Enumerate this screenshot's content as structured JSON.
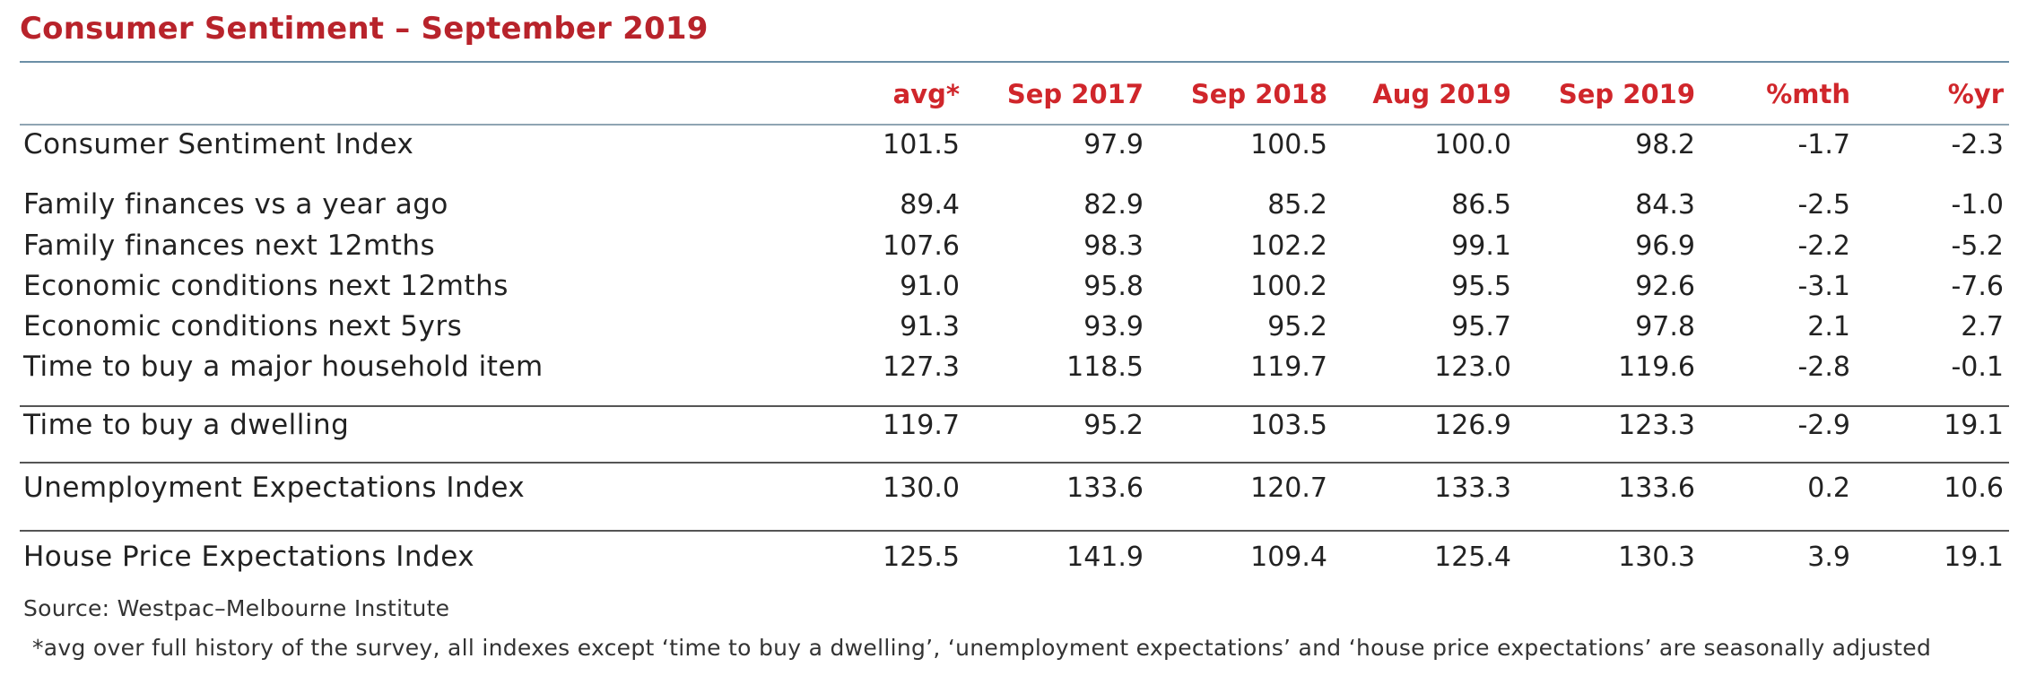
{
  "title": "Consumer Sentiment – September 2019",
  "columns": [
    "avg*",
    "Sep 2017",
    "Sep 2018",
    "Aug 2019",
    "Sep 2019",
    "%mth",
    "%yr"
  ],
  "rows": [
    {
      "label": "Consumer Sentiment Index",
      "values": [
        "101.5",
        "97.9",
        "100.5",
        "100.0",
        "98.2",
        "-1.7",
        "-2.3"
      ]
    },
    {
      "label": "Family finances vs a year ago",
      "values": [
        "89.4",
        "82.9",
        "85.2",
        "86.5",
        "84.3",
        "-2.5",
        "-1.0"
      ]
    },
    {
      "label": "Family finances next 12mths",
      "values": [
        "107.6",
        "98.3",
        "102.2",
        "99.1",
        "96.9",
        "-2.2",
        "-5.2"
      ]
    },
    {
      "label": "Economic conditions next 12mths",
      "values": [
        "91.0",
        "95.8",
        "100.2",
        "95.5",
        "92.6",
        "-3.1",
        "-7.6"
      ]
    },
    {
      "label": "Economic conditions next 5yrs",
      "values": [
        "91.3",
        "93.9",
        "95.2",
        "95.7",
        "97.8",
        "2.1",
        "2.7"
      ]
    },
    {
      "label": "Time to buy a major household item",
      "values": [
        "127.3",
        "118.5",
        "119.7",
        "123.0",
        "119.6",
        "-2.8",
        "-0.1"
      ]
    },
    {
      "label": "Time to buy a dwelling",
      "values": [
        "119.7",
        "95.2",
        "103.5",
        "126.9",
        "123.3",
        "-2.9",
        "19.1"
      ]
    },
    {
      "label": "Unemployment Expectations Index",
      "values": [
        "130.0",
        "133.6",
        "120.7",
        "133.3",
        "133.6",
        "0.2",
        "10.6"
      ]
    },
    {
      "label": "House Price Expectations Index",
      "values": [
        "125.5",
        "141.9",
        "109.4",
        "125.4",
        "130.3",
        "3.9",
        "19.1"
      ]
    }
  ],
  "footer": {
    "source": "Source: Westpac–Melbourne Institute",
    "note": "*avg over full history of the survey, all indexes except ‘time to buy a dwelling’, ‘unemployment expectations’ and ‘house price expectations’ are seasonally adjusted"
  },
  "colors": {
    "title": "#b8232b",
    "header": "#d0262b"
  }
}
